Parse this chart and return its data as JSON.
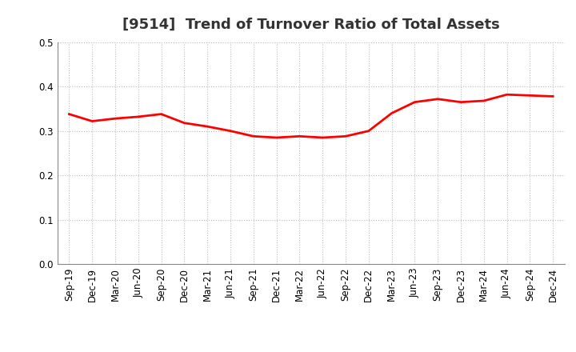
{
  "title": "[9514]  Trend of Turnover Ratio of Total Assets",
  "labels": [
    "Sep-19",
    "Dec-19",
    "Mar-20",
    "Jun-20",
    "Sep-20",
    "Dec-20",
    "Mar-21",
    "Jun-21",
    "Sep-21",
    "Dec-21",
    "Mar-22",
    "Jun-22",
    "Sep-22",
    "Dec-22",
    "Mar-23",
    "Jun-23",
    "Sep-23",
    "Dec-23",
    "Mar-24",
    "Jun-24",
    "Sep-24",
    "Dec-24"
  ],
  "values": [
    0.338,
    0.322,
    0.328,
    0.332,
    0.338,
    0.318,
    0.31,
    0.3,
    0.288,
    0.285,
    0.288,
    0.285,
    0.288,
    0.3,
    0.34,
    0.365,
    0.372,
    0.365,
    0.368,
    0.382,
    0.38,
    0.378
  ],
  "line_color": "#ff0000",
  "line_width": 2.0,
  "ylim": [
    0.0,
    0.5
  ],
  "yticks": [
    0.0,
    0.1,
    0.2,
    0.3,
    0.4,
    0.5
  ],
  "background_color": "#ffffff",
  "grid_color": "#bbbbbb",
  "title_fontsize": 13,
  "tick_fontsize": 8.5
}
